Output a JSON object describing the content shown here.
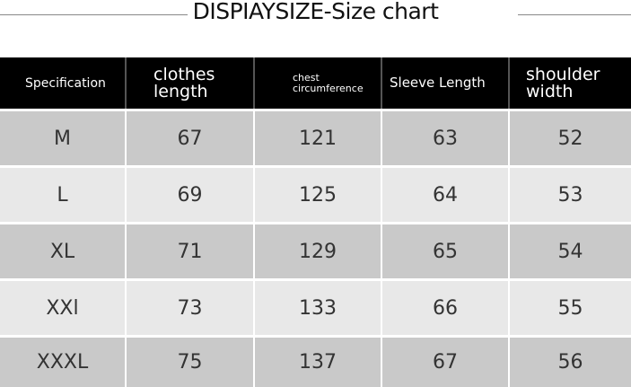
{
  "title": "DISPIAYSIZE-Size chart",
  "headers": [
    "Specification",
    "clothes length",
    "chest circumference",
    "Sleeve Length",
    "shoulder width"
  ],
  "rows": [
    {
      "size": "M",
      "clothes_length": "67",
      "chest": "121",
      "sleeve": "63",
      "shoulder": "52"
    },
    {
      "size": "L",
      "clothes_length": "69",
      "chest": "125",
      "sleeve": "64",
      "shoulder": "53"
    },
    {
      "size": "XL",
      "clothes_length": "71",
      "chest": "129",
      "sleeve": "65",
      "shoulder": "54"
    },
    {
      "size": "XXl",
      "clothes_length": "73",
      "chest": "133",
      "sleeve": "66",
      "shoulder": "55"
    },
    {
      "size": "XXXL",
      "clothes_length": "75",
      "chest": "137",
      "sleeve": "67",
      "shoulder": "56"
    }
  ]
}
